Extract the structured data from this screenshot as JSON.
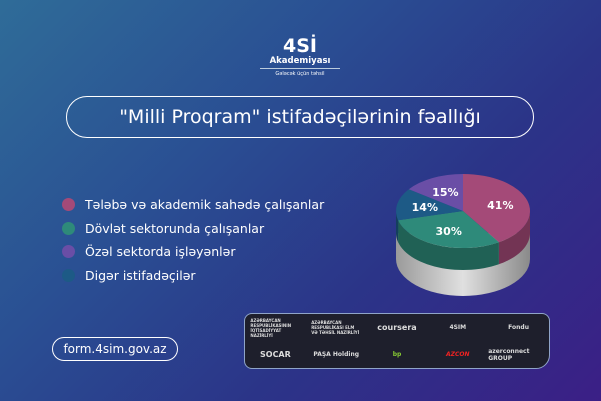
{
  "brand": {
    "name": "4Sİ",
    "subtitle": "Akademiyası",
    "tagline": "Gələcək üçün təhsil"
  },
  "title": "\"Milli Proqram\" istifadəçilərinin fəallığı",
  "url": "form.4sim.gov.az",
  "partners": [
    "AZƏRBAYCAN RESPUBLİKASININ İQTİSADİYYAT NAZİRLİYİ",
    "AZƏRBAYCAN RESPUBLİKASI ELM VƏ TƏHSİL NAZİRLİYİ",
    "coursera",
    "4SIM",
    "Fondu",
    "SOCAR",
    "PAŞA Holding",
    "bp",
    "AZCON",
    "azerconnect GROUP"
  ],
  "chart_data": {
    "type": "pie",
    "style": "3d",
    "categories": [
      "Tələbə və akademik sahədə çalışanlar",
      "Dövlət sektorunda çalışanlar",
      "Digər istifadəçilər",
      "Özəl sektorda işləyənlər"
    ],
    "values": [
      41,
      30,
      14,
      15
    ],
    "labels": [
      "41%",
      "30%",
      "14%",
      "15%"
    ],
    "colors": [
      "#a44a78",
      "#2e8a7a",
      "#1d5a86",
      "#6a4ea6"
    ],
    "legend": {
      "placement": "left",
      "items": [
        {
          "label": "Tələbə və akademik sahədə çalışanlar",
          "color": "#a44a78"
        },
        {
          "label": "Dövlət sektorunda çalışanlar",
          "color": "#2e8a7a"
        },
        {
          "label": "Özəl sektorda işləyənlər",
          "color": "#6a4ea6"
        },
        {
          "label": "Digər istifadəçilər",
          "color": "#1d5a86"
        }
      ]
    }
  }
}
